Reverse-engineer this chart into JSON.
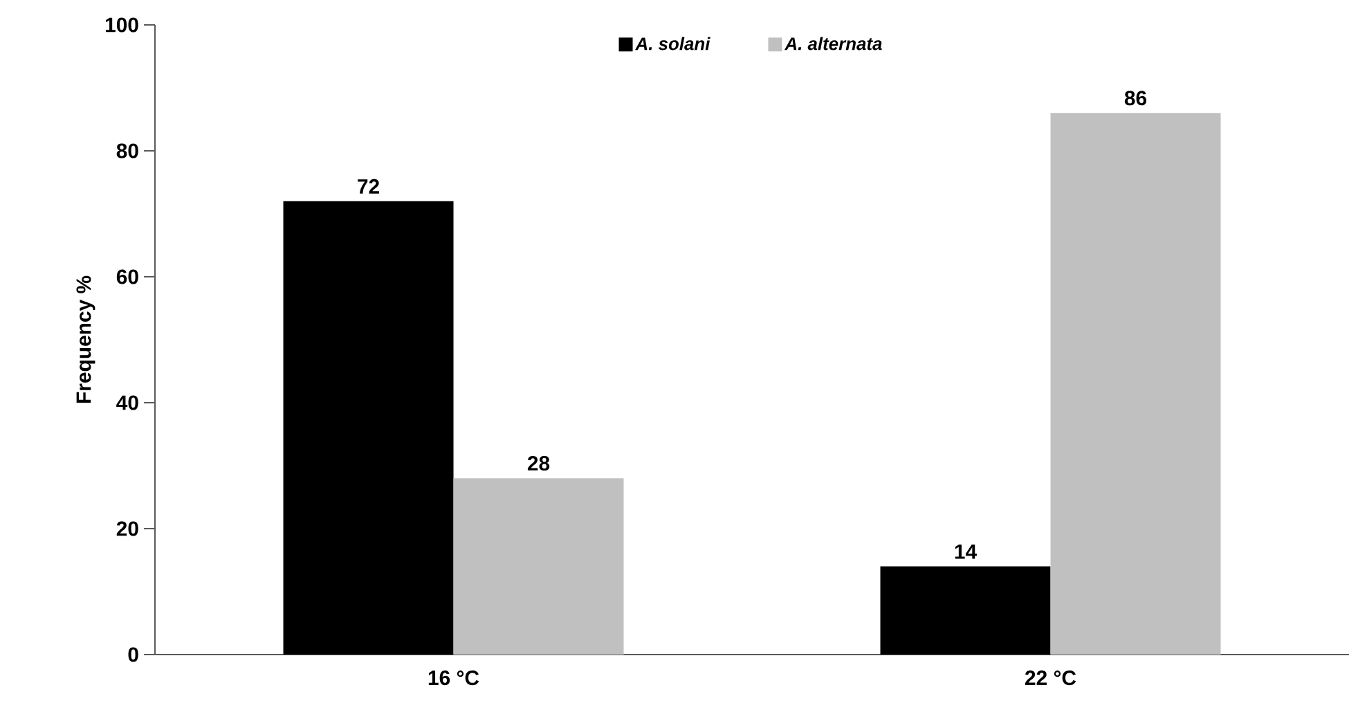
{
  "chart_data": {
    "type": "bar",
    "ylabel": "Frequency %",
    "categories": [
      "16 °C",
      "22 °C"
    ],
    "series": [
      {
        "name": "A. solani",
        "color": "#000000",
        "values": [
          72,
          14
        ]
      },
      {
        "name": "A. alternata",
        "color": "#c0c0c0",
        "values": [
          28,
          86
        ]
      }
    ],
    "ylim": [
      0,
      100
    ],
    "yticks": [
      0,
      20,
      40,
      60,
      80,
      100
    ],
    "data_labels": true,
    "legend": "top",
    "grid": false
  }
}
